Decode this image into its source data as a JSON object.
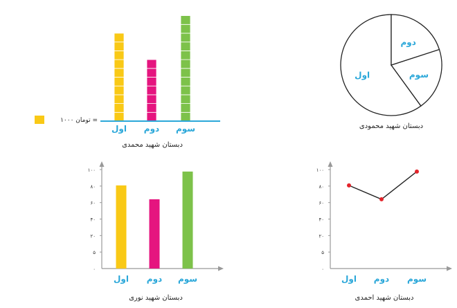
{
  "chart_data": [
    {
      "type": "bar",
      "variant": "pictograph",
      "title": "دبستان شهید محمدی",
      "categories": [
        "اول",
        "دوم",
        "سوم"
      ],
      "values": [
        10,
        7,
        12
      ],
      "unit_label": "تومان ۱۰۰۰",
      "legend": {
        "symbol_value": "۱۰۰۰ = تومان",
        "text": "تومان ۱۰۰۰ ="
      },
      "colors": [
        "#f9c916",
        "#e5157f",
        "#7dc24a"
      ]
    },
    {
      "type": "pie",
      "title": "دبستان شهید محمودی",
      "labels": [
        "اول",
        "سوم",
        "دوم"
      ],
      "values": [
        3,
        1,
        1
      ],
      "colors": [
        "#ffffff",
        "#ffffff",
        "#ffffff"
      ]
    },
    {
      "type": "bar",
      "title": "دبستان شهید نوری",
      "categories": [
        "اول",
        "دوم",
        "سوم"
      ],
      "values": [
        84,
        70,
        98
      ],
      "y_ticks": [
        "۵",
        "۲۰",
        "۴۰",
        "۶۰",
        "۸۰",
        "۱۰۰"
      ],
      "y_zero_label": "٠",
      "ylim": [
        0,
        100
      ],
      "colors": [
        "#f9c916",
        "#e5157f",
        "#7dc24a"
      ]
    },
    {
      "type": "line",
      "title": "دبستان شهید احمدی",
      "categories": [
        "اول",
        "دوم",
        "سوم"
      ],
      "values": [
        84,
        70,
        98
      ],
      "y_ticks": [
        "۵",
        "۲۰",
        "۴۰",
        "۶۰",
        "۸۰",
        "۱۰۰"
      ],
      "y_zero_label": "٠",
      "ylim": [
        0,
        100
      ],
      "line_color": "#222222",
      "marker_color": "#e3242b"
    }
  ]
}
